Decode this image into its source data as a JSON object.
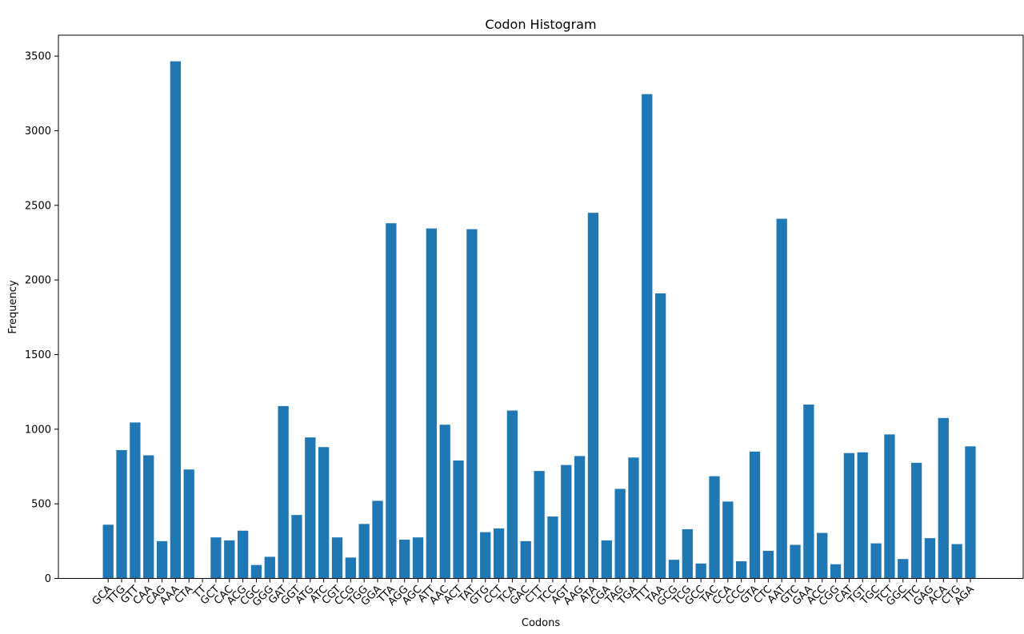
{
  "chart_data": {
    "type": "bar",
    "title": "Codon Histogram",
    "xlabel": "Codons",
    "ylabel": "Frequency",
    "ylim": [
      0,
      3640
    ],
    "yticks": [
      0,
      500,
      1000,
      1500,
      2000,
      2500,
      3000,
      3500
    ],
    "grid": false,
    "bar_color": "#1f77b4",
    "categories": [
      "GCA",
      "TTG",
      "GTT",
      "CAA",
      "CAG",
      "AAA",
      "CTA",
      "TT",
      "GCT",
      "CAC",
      "ACG",
      "CGC",
      "GGG",
      "GAT",
      "GGT",
      "ATG",
      "ATC",
      "CGT",
      "CCG",
      "TGG",
      "GGA",
      "TTA",
      "AGG",
      "AGC",
      "ATT",
      "AAC",
      "ACT",
      "TAT",
      "GTG",
      "CCT",
      "TCA",
      "GAC",
      "CTT",
      "TCC",
      "AGT",
      "AAG",
      "ATA",
      "CGA",
      "TAG",
      "TGA",
      "TTT",
      "TAA",
      "GCG",
      "TCG",
      "GCC",
      "TAC",
      "CCA",
      "CCC",
      "GTA",
      "CTC",
      "AAT",
      "GTC",
      "GAA",
      "ACC",
      "CGG",
      "CAT",
      "TGT",
      "TGC",
      "TCT",
      "GGC",
      "TTC",
      "GAG",
      "ACA",
      "CTG",
      "AGA"
    ],
    "values": [
      360,
      860,
      1045,
      825,
      250,
      3465,
      730,
      0,
      275,
      255,
      320,
      90,
      145,
      1155,
      425,
      945,
      880,
      275,
      140,
      365,
      520,
      2380,
      260,
      275,
      2345,
      1030,
      790,
      2340,
      310,
      335,
      1125,
      250,
      720,
      415,
      760,
      820,
      2450,
      255,
      600,
      810,
      3245,
      1910,
      125,
      330,
      100,
      685,
      515,
      115,
      850,
      185,
      2410,
      225,
      1165,
      305,
      95,
      840,
      845,
      235,
      965,
      130,
      775,
      270,
      1075,
      230,
      885
    ]
  }
}
